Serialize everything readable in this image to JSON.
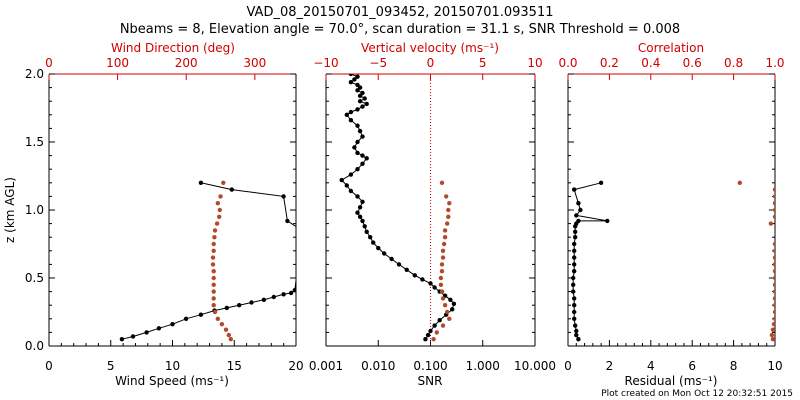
{
  "title_line1": "VAD_08_20150701_093452, 20150701.093511",
  "title_line2": "Nbeams = 8, Elevation angle = 70.0°, scan duration = 31.1 s, SNR Threshold = 0.008",
  "credit": "Plot created on Mon Oct 12 20:32:51 2015",
  "colors": {
    "black": "#000000",
    "red": "#d00000",
    "brown": "#b24a2a"
  },
  "chart_data": [
    {
      "type": "line",
      "xlabel": "Wind Speed (ms⁻¹)",
      "xlim": [
        0,
        20
      ],
      "xticks": [
        "0",
        "5",
        "10",
        "15",
        "20"
      ],
      "ylabel": "z (km AGL)",
      "ylim": [
        0,
        2
      ],
      "yticks": [
        "0.0",
        "0.5",
        "1.0",
        "1.5",
        "2.0"
      ],
      "top_axis": {
        "label": "Wind Direction (deg)",
        "lim": [
          0,
          360
        ],
        "ticks": [
          "0",
          "100",
          "200",
          "300"
        ]
      },
      "series": [
        {
          "color": "#000000",
          "x": [
            5.9,
            6.8,
            7.9,
            8.9,
            10.0,
            11.1,
            12.3,
            13.4,
            14.4,
            15.4,
            16.4,
            17.4,
            18.2,
            19.0,
            19.6,
            19.9,
            20.5,
            19.3,
            19.0,
            14.8,
            12.3
          ],
          "y": [
            0.05,
            0.07,
            0.1,
            0.13,
            0.16,
            0.2,
            0.23,
            0.26,
            0.28,
            0.3,
            0.32,
            0.34,
            0.36,
            0.38,
            0.39,
            0.41,
            0.85,
            0.92,
            1.1,
            1.15,
            1.2
          ]
        },
        {
          "color": "#b24a2a",
          "axis": "top",
          "x": [
            265,
            262,
            258,
            252,
            246,
            242,
            240,
            240,
            240,
            240,
            240,
            240,
            239,
            239,
            240,
            240,
            241,
            242,
            245,
            248,
            249,
            246,
            250,
            254
          ],
          "y": [
            0.05,
            0.08,
            0.12,
            0.16,
            0.2,
            0.25,
            0.3,
            0.35,
            0.4,
            0.45,
            0.5,
            0.55,
            0.6,
            0.65,
            0.7,
            0.75,
            0.8,
            0.85,
            0.9,
            0.95,
            1.0,
            1.05,
            1.1,
            1.2
          ]
        }
      ]
    },
    {
      "type": "line",
      "xlabel": "SNR",
      "xscale": "log",
      "xlim": [
        0.001,
        10
      ],
      "xticks": [
        "0.001",
        "0.010",
        "0.100",
        "1.000",
        "10.000"
      ],
      "ylim": [
        0,
        2
      ],
      "top_axis": {
        "label": "Vertical velocity (ms⁻¹)",
        "lim": [
          -10,
          10
        ],
        "ticks": [
          "−10",
          "−5",
          "0",
          "5",
          "10"
        ],
        "reference_line": 0
      },
      "series": [
        {
          "color": "#000000",
          "x": [
            0.08,
            0.09,
            0.1,
            0.12,
            0.15,
            0.2,
            0.26,
            0.28,
            0.24,
            0.19,
            0.15,
            0.12,
            0.1,
            0.07,
            0.05,
            0.035,
            0.025,
            0.018,
            0.013,
            0.01,
            0.008,
            0.007,
            0.006,
            0.0055,
            0.005,
            0.0045,
            0.004,
            0.0045,
            0.005,
            0.004,
            0.003,
            0.0025,
            0.002,
            0.003,
            0.004,
            0.005,
            0.006,
            0.005,
            0.004,
            0.0035,
            0.004,
            0.005,
            0.0045,
            0.004,
            0.003,
            0.0025,
            0.003,
            0.004,
            0.005,
            0.006,
            0.0045,
            0.0055,
            0.0045,
            0.005,
            0.004,
            0.0045,
            0.004,
            0.003,
            0.0035,
            0.004,
            0.003
          ],
          "y": [
            0.05,
            0.08,
            0.11,
            0.15,
            0.19,
            0.23,
            0.27,
            0.31,
            0.34,
            0.37,
            0.4,
            0.43,
            0.46,
            0.49,
            0.52,
            0.56,
            0.6,
            0.64,
            0.68,
            0.72,
            0.76,
            0.8,
            0.84,
            0.88,
            0.92,
            0.95,
            0.98,
            1.02,
            1.06,
            1.1,
            1.14,
            1.18,
            1.22,
            1.26,
            1.3,
            1.34,
            1.38,
            1.4,
            1.42,
            1.46,
            1.5,
            1.54,
            1.58,
            1.62,
            1.66,
            1.7,
            1.72,
            1.74,
            1.76,
            1.78,
            1.8,
            1.82,
            1.84,
            1.86,
            1.88,
            1.9,
            1.92,
            1.94,
            1.96,
            1.98,
            2.0
          ]
        },
        {
          "color": "#b24a2a",
          "axis": "top",
          "x": [
            0.3,
            0.6,
            1.2,
            1.8,
            1.6,
            1.4,
            1.2,
            1.1,
            1.0,
            1.0,
            1.1,
            1.1,
            1.2,
            1.2,
            1.3,
            1.4,
            1.4,
            1.6,
            1.7,
            1.7,
            1.8,
            1.5,
            1.1
          ],
          "y": [
            0.05,
            0.1,
            0.15,
            0.2,
            0.25,
            0.3,
            0.35,
            0.4,
            0.45,
            0.5,
            0.55,
            0.6,
            0.65,
            0.7,
            0.75,
            0.8,
            0.85,
            0.9,
            0.95,
            1.0,
            1.05,
            1.1,
            1.2
          ]
        }
      ]
    },
    {
      "type": "line",
      "xlabel": "Residual (ms⁻¹)",
      "xlim": [
        0,
        10
      ],
      "xticks": [
        "0",
        "2",
        "4",
        "6",
        "8",
        "10"
      ],
      "ylim": [
        0,
        2
      ],
      "top_axis": {
        "label": "Correlation",
        "lim": [
          0,
          1
        ],
        "ticks": [
          "0.0",
          "0.2",
          "0.4",
          "0.6",
          "0.8",
          "1.0"
        ]
      },
      "series": [
        {
          "color": "#000000",
          "x": [
            0.5,
            0.4,
            0.4,
            0.35,
            0.3,
            0.3,
            0.3,
            0.3,
            0.25,
            0.25,
            0.25,
            0.3,
            0.3,
            0.3,
            0.3,
            0.3,
            0.35,
            0.35,
            0.35,
            0.4,
            0.5,
            1.9,
            0.4,
            0.6,
            0.5,
            0.3,
            1.6
          ],
          "y": [
            0.05,
            0.08,
            0.11,
            0.15,
            0.2,
            0.25,
            0.3,
            0.35,
            0.4,
            0.45,
            0.5,
            0.55,
            0.6,
            0.65,
            0.7,
            0.75,
            0.8,
            0.84,
            0.88,
            0.9,
            0.92,
            0.92,
            0.96,
            1.0,
            1.05,
            1.15,
            1.2
          ]
        },
        {
          "color": "#b24a2a",
          "axis": "top",
          "x": [
            0.99,
            0.985,
            0.99,
            0.995,
            1.0,
            1.0,
            1.0,
            1.0,
            1.0,
            1.0,
            1.0,
            1.0,
            1.0,
            1.0,
            1.0,
            1.0,
            0.98,
            1.0,
            1.0,
            1.0,
            1.0,
            1.0,
            0.83
          ],
          "y": [
            0.05,
            0.08,
            0.12,
            0.16,
            0.2,
            0.25,
            0.3,
            0.35,
            0.4,
            0.45,
            0.5,
            0.55,
            0.6,
            0.65,
            0.7,
            0.75,
            0.9,
            0.95,
            1.0,
            1.05,
            1.1,
            1.15,
            1.2
          ]
        }
      ]
    }
  ]
}
